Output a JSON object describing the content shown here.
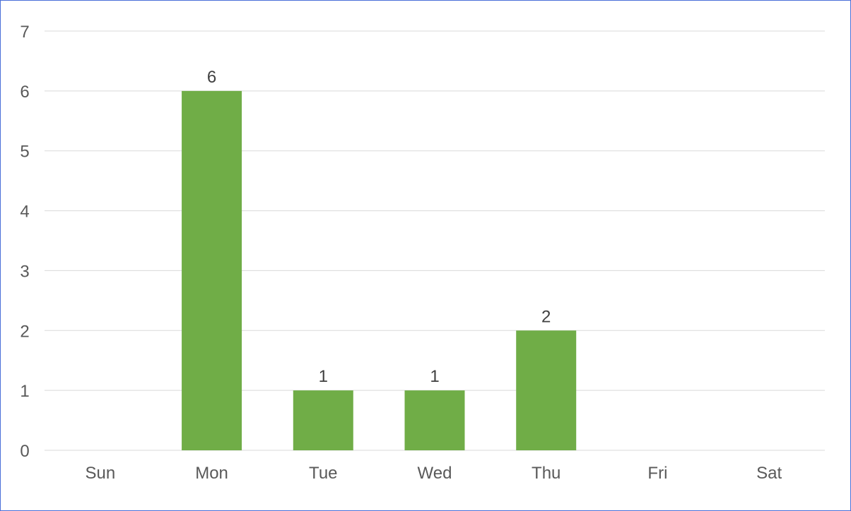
{
  "chart_data": {
    "type": "bar",
    "categories": [
      "Sun",
      "Mon",
      "Tue",
      "Wed",
      "Thu",
      "Fri",
      "Sat"
    ],
    "values": [
      0,
      6,
      1,
      1,
      2,
      0,
      0
    ],
    "data_labels": [
      "",
      "6",
      "1",
      "1",
      "2",
      "",
      ""
    ],
    "ylim": [
      0,
      7
    ],
    "yticks": [
      "0",
      "1",
      "2",
      "3",
      "4",
      "5",
      "6",
      "7"
    ],
    "grid": true,
    "legend": "none",
    "bar_color": "#70ad47",
    "grid_color": "#d9d9d9",
    "frame_color": "#4a6fd8"
  }
}
